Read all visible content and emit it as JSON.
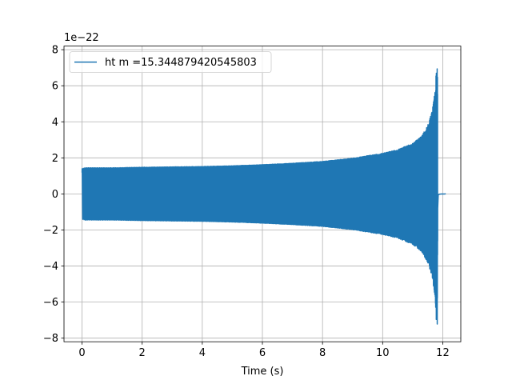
{
  "chart_data": {
    "type": "line",
    "title": "",
    "xlabel": "Time (s)",
    "ylabel": "",
    "y_scale_label": "1e−22",
    "xlim": [
      -0.6,
      12.6
    ],
    "ylim": [
      -8.2,
      8.2
    ],
    "x_ticks": [
      0,
      2,
      4,
      6,
      8,
      10,
      12
    ],
    "y_ticks": [
      -8,
      -6,
      -4,
      -2,
      0,
      2,
      4,
      6,
      8
    ],
    "x_tick_labels": [
      "0",
      "2",
      "4",
      "6",
      "8",
      "10",
      "12"
    ],
    "y_tick_labels": [
      "−8",
      "−6",
      "−4",
      "−2",
      "0",
      "2",
      "4",
      "6",
      "8"
    ],
    "grid": true,
    "legend_position": "top-left",
    "series": [
      {
        "name": "ht m =15.344879420545803",
        "color": "#1f77b4",
        "envelope": {
          "t": [
            0.0,
            0.1,
            1,
            2,
            3,
            4,
            5,
            6,
            7,
            8,
            9,
            10,
            10.5,
            11.0,
            11.3,
            11.5,
            11.65,
            11.75,
            11.8,
            11.82,
            11.85,
            11.9,
            12.1
          ],
          "amp": [
            1.4,
            1.45,
            1.45,
            1.48,
            1.5,
            1.52,
            1.56,
            1.62,
            1.7,
            1.8,
            1.98,
            2.25,
            2.45,
            2.8,
            3.2,
            3.8,
            4.6,
            5.8,
            7.5,
            7.2,
            0.3,
            0.05,
            0.0
          ]
        }
      }
    ]
  }
}
